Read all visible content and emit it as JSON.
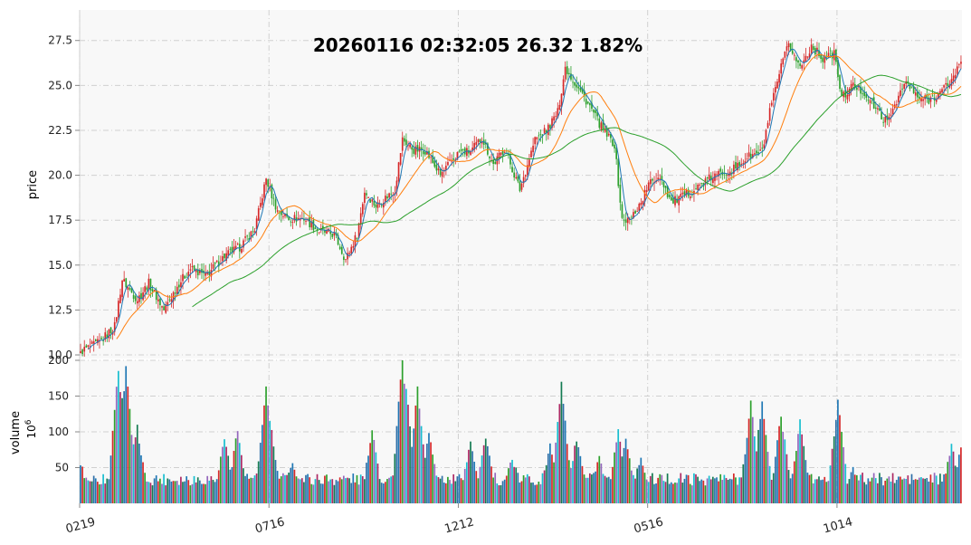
{
  "chart_data": [
    {
      "type": "candlestick",
      "title": "20260116 02:32:05   26.32 1.82%",
      "ylabel": "price",
      "ylim": [
        9.8,
        29.2
      ],
      "yticks": [
        10.0,
        12.5,
        15.0,
        17.5,
        20.0,
        22.5,
        25.0,
        27.5
      ],
      "ytick_labels": [
        "10.0",
        "12.5",
        "15.0",
        "17.5",
        "20.0",
        "22.5",
        "25.0",
        "27.5"
      ],
      "xlim": [
        0,
        466
      ],
      "xticks": [
        0,
        100,
        200,
        300,
        400
      ],
      "xtick_labels": [
        "0219",
        "0716",
        "1212",
        "0516",
        "1014"
      ],
      "n_bars": 466,
      "up_color": "#d62728",
      "down_color": "#2ca02c",
      "close_anchors": [
        [
          0,
          10.2
        ],
        [
          10,
          10.7
        ],
        [
          18,
          11.6
        ],
        [
          22,
          14.2
        ],
        [
          26,
          13.6
        ],
        [
          30,
          13.1
        ],
        [
          36,
          14.0
        ],
        [
          44,
          12.5
        ],
        [
          52,
          14.0
        ],
        [
          58,
          14.8
        ],
        [
          66,
          14.4
        ],
        [
          76,
          15.5
        ],
        [
          84,
          16.0
        ],
        [
          92,
          17.0
        ],
        [
          98,
          19.8
        ],
        [
          104,
          18.0
        ],
        [
          110,
          17.6
        ],
        [
          118,
          17.6
        ],
        [
          126,
          16.9
        ],
        [
          134,
          16.7
        ],
        [
          140,
          15.3
        ],
        [
          146,
          16.7
        ],
        [
          150,
          19.1
        ],
        [
          156,
          18.3
        ],
        [
          166,
          19.2
        ],
        [
          170,
          22.0
        ],
        [
          176,
          21.4
        ],
        [
          182,
          21.4
        ],
        [
          190,
          20.0
        ],
        [
          200,
          21.3
        ],
        [
          206,
          21.3
        ],
        [
          212,
          22.1
        ],
        [
          218,
          20.6
        ],
        [
          224,
          21.5
        ],
        [
          232,
          19.2
        ],
        [
          240,
          22.0
        ],
        [
          246,
          22.5
        ],
        [
          252,
          23.5
        ],
        [
          256,
          26.0
        ],
        [
          262,
          25.0
        ],
        [
          268,
          24.0
        ],
        [
          276,
          22.5
        ],
        [
          282,
          21.7
        ],
        [
          286,
          17.5
        ],
        [
          290,
          17.5
        ],
        [
          296,
          18.5
        ],
        [
          300,
          19.5
        ],
        [
          306,
          20.0
        ],
        [
          312,
          18.5
        ],
        [
          318,
          18.8
        ],
        [
          324,
          19.2
        ],
        [
          332,
          19.8
        ],
        [
          340,
          20.2
        ],
        [
          346,
          20.4
        ],
        [
          352,
          21.0
        ],
        [
          360,
          21.3
        ],
        [
          364,
          23.5
        ],
        [
          370,
          26.0
        ],
        [
          374,
          27.3
        ],
        [
          380,
          26.0
        ],
        [
          386,
          27.2
        ],
        [
          392,
          26.5
        ],
        [
          398,
          26.8
        ],
        [
          402,
          24.3
        ],
        [
          408,
          25.0
        ],
        [
          414,
          24.6
        ],
        [
          420,
          23.7
        ],
        [
          426,
          22.9
        ],
        [
          430,
          24.0
        ],
        [
          436,
          25.2
        ],
        [
          442,
          24.3
        ],
        [
          448,
          24.2
        ],
        [
          454,
          24.6
        ],
        [
          460,
          25.3
        ],
        [
          465,
          26.32
        ]
      ],
      "ma_windows": [
        5,
        20,
        60
      ],
      "ma_colors": [
        "#1f77b4",
        "#ff7f0e",
        "#2ca02c"
      ]
    },
    {
      "type": "bar",
      "ylabel": "volume",
      "yunit": "10",
      "yunit_exp": "6",
      "ylim": [
        0,
        200
      ],
      "yticks": [
        50,
        100,
        150,
        200
      ],
      "ytick_labels": [
        "50",
        "100",
        "150",
        "200"
      ],
      "bar_colors": [
        "#1f77b4",
        "#d62728",
        "#2ca02c",
        "#9467bd",
        "#17becf",
        "#ad2964",
        "#137b52",
        "#2f6fa8"
      ],
      "base_volume": 25,
      "volume_peaks": [
        [
          0,
          50
        ],
        [
          20,
          185
        ],
        [
          22,
          140
        ],
        [
          24,
          185
        ],
        [
          26,
          110
        ],
        [
          30,
          100
        ],
        [
          76,
          85
        ],
        [
          83,
          98
        ],
        [
          98,
          160
        ],
        [
          100,
          115
        ],
        [
          112,
          55
        ],
        [
          154,
          95
        ],
        [
          168,
          50
        ],
        [
          170,
          200
        ],
        [
          172,
          155
        ],
        [
          178,
          155
        ],
        [
          184,
          95
        ],
        [
          206,
          85
        ],
        [
          214,
          90
        ],
        [
          228,
          60
        ],
        [
          248,
          75
        ],
        [
          254,
          165
        ],
        [
          262,
          85
        ],
        [
          274,
          60
        ],
        [
          284,
          95
        ],
        [
          288,
          90
        ],
        [
          296,
          60
        ],
        [
          354,
          135
        ],
        [
          360,
          140
        ],
        [
          370,
          120
        ],
        [
          380,
          110
        ],
        [
          400,
          140
        ],
        [
          408,
          45
        ],
        [
          440,
          25
        ],
        [
          460,
          75
        ],
        [
          465,
          75
        ]
      ]
    }
  ]
}
